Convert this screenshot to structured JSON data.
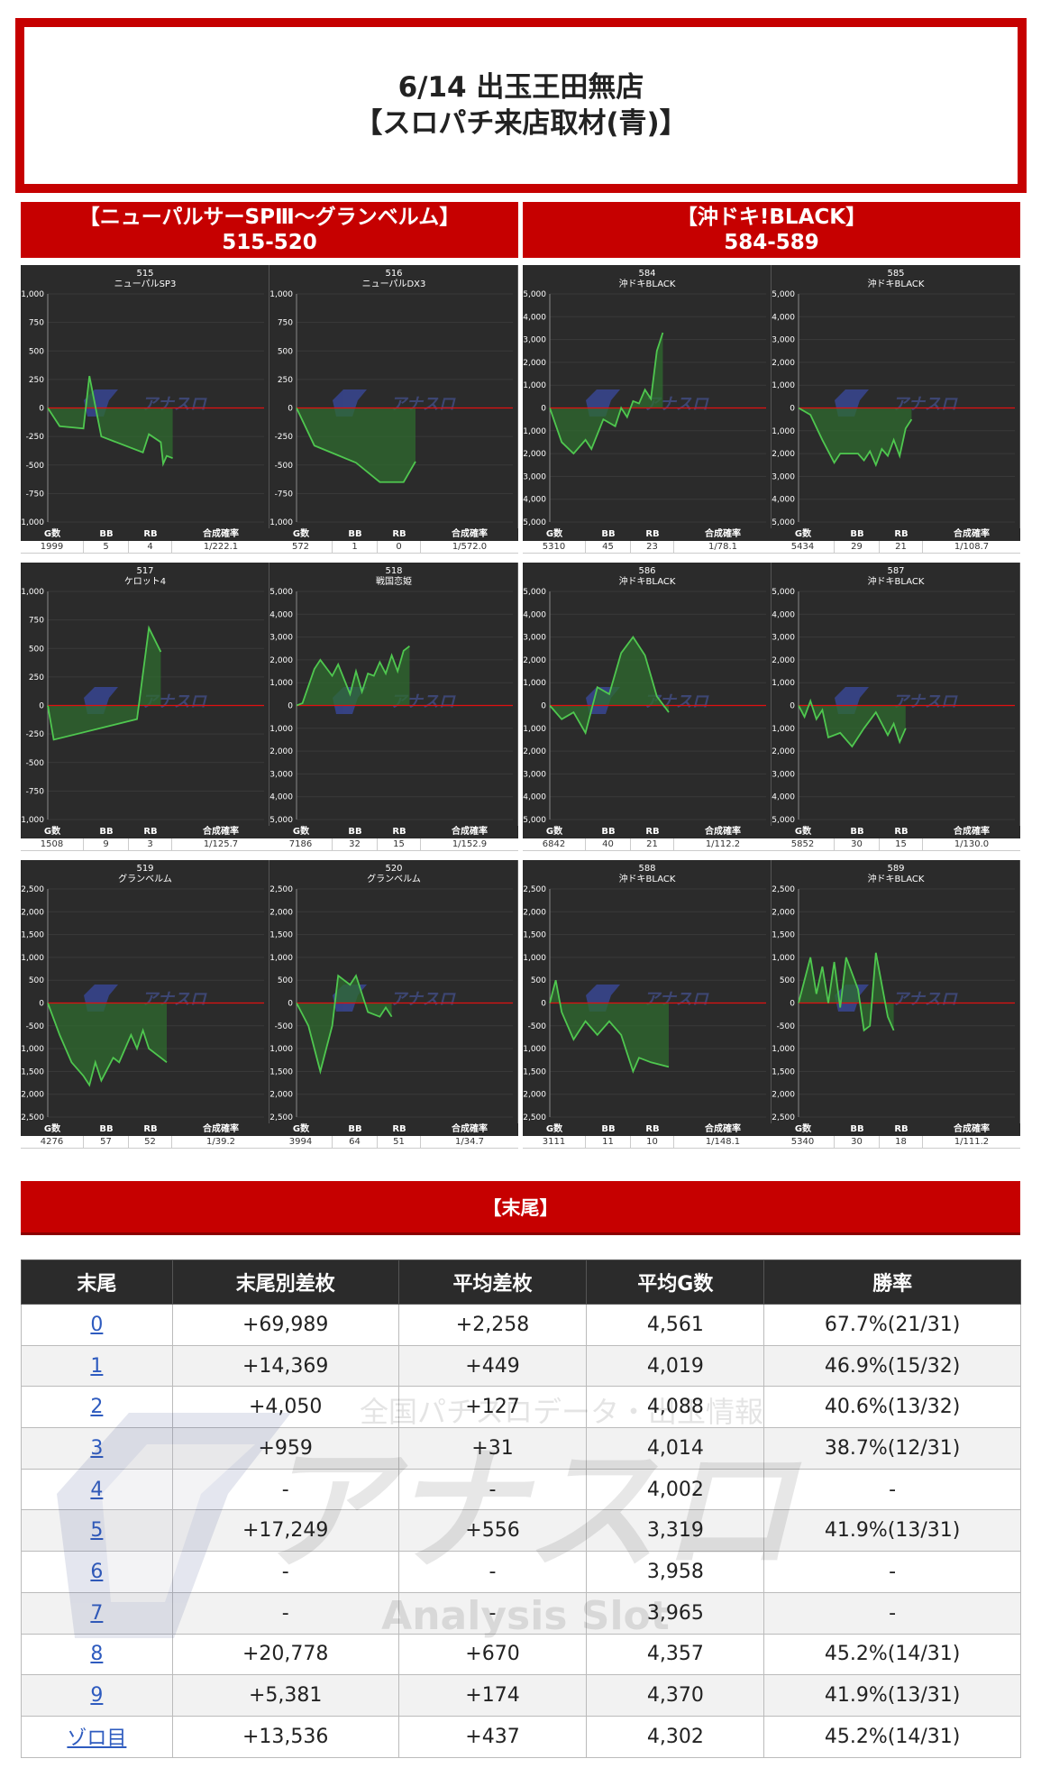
{
  "header": {
    "line1": "6/14 出玉王田無店",
    "line2": "【スロパチ来店取材(青)】"
  },
  "panels": [
    {
      "title": "【ニューパルサーSPⅢ～グランベルム】",
      "range": "515-520",
      "charts": [
        {
          "num": "515",
          "name": "ニューパルSP3",
          "yticks": [
            "1,000",
            "750",
            "500",
            "250",
            "0",
            "-250",
            "-500",
            "-750",
            "-1,000"
          ],
          "ymax": 1000,
          "points": [
            [
              0,
              0
            ],
            [
              0.1,
              -160
            ],
            [
              0.3,
              -180
            ],
            [
              0.35,
              280
            ],
            [
              0.45,
              -250
            ],
            [
              0.8,
              -390
            ],
            [
              0.85,
              -230
            ],
            [
              0.95,
              -300
            ],
            [
              0.97,
              -490
            ],
            [
              1.0,
              -420
            ],
            [
              1.05,
              -440
            ]
          ],
          "g": "1999",
          "bb": "5",
          "rb": "4",
          "rate": "1/222.1"
        },
        {
          "num": "516",
          "name": "ニューパルDX3",
          "yticks": [
            "1,000",
            "750",
            "500",
            "250",
            "0",
            "-250",
            "-500",
            "-750",
            "-1,000"
          ],
          "ymax": 1000,
          "points": [
            [
              0,
              0
            ],
            [
              0.15,
              -330
            ],
            [
              0.5,
              -480
            ],
            [
              0.7,
              -650
            ],
            [
              0.9,
              -650
            ],
            [
              1.0,
              -470
            ]
          ],
          "g": "572",
          "bb": "1",
          "rb": "0",
          "rate": "1/572.0"
        },
        {
          "num": "517",
          "name": "ケロット4",
          "yticks": [
            "1,000",
            "750",
            "500",
            "250",
            "0",
            "-250",
            "-500",
            "-750",
            "-1,000"
          ],
          "ymax": 1000,
          "points": [
            [
              0,
              0
            ],
            [
              0.05,
              -300
            ],
            [
              0.75,
              -120
            ],
            [
              0.85,
              680
            ],
            [
              0.95,
              470
            ]
          ],
          "g": "1508",
          "bb": "9",
          "rb": "3",
          "rate": "1/125.7"
        },
        {
          "num": "518",
          "name": "戦国恋姫",
          "yticks": [
            "5,000",
            "4,000",
            "3,000",
            "2,000",
            "1,000",
            "0",
            "-1,000",
            "-2,000",
            "-3,000",
            "-4,000",
            "-5,000"
          ],
          "ymax": 5000,
          "points": [
            [
              0,
              0
            ],
            [
              0.05,
              100
            ],
            [
              0.15,
              1600
            ],
            [
              0.2,
              2000
            ],
            [
              0.3,
              1300
            ],
            [
              0.35,
              1800
            ],
            [
              0.45,
              500
            ],
            [
              0.5,
              1500
            ],
            [
              0.55,
              600
            ],
            [
              0.6,
              1400
            ],
            [
              0.65,
              1300
            ],
            [
              0.7,
              1900
            ],
            [
              0.75,
              1400
            ],
            [
              0.8,
              2200
            ],
            [
              0.85,
              1500
            ],
            [
              0.9,
              2400
            ],
            [
              0.95,
              2600
            ]
          ],
          "g": "7186",
          "bb": "32",
          "rb": "15",
          "rate": "1/152.9"
        },
        {
          "num": "519",
          "name": "グランベルム",
          "yticks": [
            "2,500",
            "2,000",
            "1,500",
            "1,000",
            "500",
            "0",
            "-500",
            "-1,000",
            "-1,500",
            "-2,000",
            "-2,500"
          ],
          "ymax": 2500,
          "points": [
            [
              0,
              0
            ],
            [
              0.1,
              -700
            ],
            [
              0.2,
              -1300
            ],
            [
              0.3,
              -1600
            ],
            [
              0.35,
              -1800
            ],
            [
              0.4,
              -1300
            ],
            [
              0.45,
              -1700
            ],
            [
              0.55,
              -1200
            ],
            [
              0.6,
              -1300
            ],
            [
              0.7,
              -700
            ],
            [
              0.75,
              -1000
            ],
            [
              0.8,
              -600
            ],
            [
              0.85,
              -1000
            ],
            [
              0.95,
              -1200
            ],
            [
              1.0,
              -1300
            ]
          ],
          "g": "4276",
          "bb": "57",
          "rb": "52",
          "rate": "1/39.2"
        },
        {
          "num": "520",
          "name": "グランベルム",
          "yticks": [
            "2,500",
            "2,000",
            "1,500",
            "1,000",
            "500",
            "0",
            "-500",
            "-1,000",
            "-1,500",
            "-2,000",
            "-2,500"
          ],
          "ymax": 2500,
          "points": [
            [
              0,
              0
            ],
            [
              0.1,
              -500
            ],
            [
              0.2,
              -1500
            ],
            [
              0.3,
              -500
            ],
            [
              0.35,
              600
            ],
            [
              0.45,
              400
            ],
            [
              0.5,
              600
            ],
            [
              0.6,
              -200
            ],
            [
              0.7,
              -300
            ],
            [
              0.75,
              -100
            ],
            [
              0.8,
              -300
            ]
          ],
          "g": "3994",
          "bb": "64",
          "rb": "51",
          "rate": "1/34.7"
        }
      ]
    },
    {
      "title": "【沖ドキ!BLACK】",
      "range": "584-589",
      "charts": [
        {
          "num": "584",
          "name": "沖ドキBLACK",
          "yticks": [
            "5,000",
            "4,000",
            "3,000",
            "2,000",
            "1,000",
            "0",
            "-1,000",
            "-2,000",
            "-3,000",
            "-4,000",
            "-5,000"
          ],
          "ymax": 5000,
          "points": [
            [
              0,
              0
            ],
            [
              0.1,
              -1500
            ],
            [
              0.2,
              -2000
            ],
            [
              0.3,
              -1400
            ],
            [
              0.35,
              -1800
            ],
            [
              0.45,
              -500
            ],
            [
              0.55,
              -800
            ],
            [
              0.6,
              0
            ],
            [
              0.65,
              -400
            ],
            [
              0.7,
              300
            ],
            [
              0.75,
              200
            ],
            [
              0.8,
              800
            ],
            [
              0.85,
              400
            ],
            [
              0.9,
              2500
            ],
            [
              0.95,
              3300
            ]
          ],
          "g": "5310",
          "bb": "45",
          "rb": "23",
          "rate": "1/78.1"
        },
        {
          "num": "585",
          "name": "沖ドキBLACK",
          "yticks": [
            "5,000",
            "4,000",
            "3,000",
            "2,000",
            "1,000",
            "0",
            "-1,000",
            "-2,000",
            "-3,000",
            "-4,000",
            "-5,000"
          ],
          "ymax": 5000,
          "points": [
            [
              0,
              0
            ],
            [
              0.1,
              -300
            ],
            [
              0.2,
              -1400
            ],
            [
              0.3,
              -2400
            ],
            [
              0.35,
              -2000
            ],
            [
              0.5,
              -2000
            ],
            [
              0.55,
              -2300
            ],
            [
              0.6,
              -1900
            ],
            [
              0.65,
              -2500
            ],
            [
              0.7,
              -1800
            ],
            [
              0.75,
              -2100
            ],
            [
              0.8,
              -1400
            ],
            [
              0.85,
              -2100
            ],
            [
              0.9,
              -900
            ],
            [
              0.95,
              -500
            ]
          ],
          "g": "5434",
          "bb": "29",
          "rb": "21",
          "rate": "1/108.7"
        },
        {
          "num": "586",
          "name": "沖ドキBLACK",
          "yticks": [
            "5,000",
            "4,000",
            "3,000",
            "2,000",
            "1,000",
            "0",
            "-1,000",
            "-2,000",
            "-3,000",
            "-4,000",
            "-5,000"
          ],
          "ymax": 5000,
          "points": [
            [
              0,
              0
            ],
            [
              0.1,
              -600
            ],
            [
              0.2,
              -300
            ],
            [
              0.3,
              -1200
            ],
            [
              0.4,
              800
            ],
            [
              0.5,
              500
            ],
            [
              0.6,
              2300
            ],
            [
              0.7,
              3000
            ],
            [
              0.8,
              2200
            ],
            [
              0.9,
              400
            ],
            [
              1.0,
              -300
            ]
          ],
          "g": "6842",
          "bb": "40",
          "rb": "21",
          "rate": "1/112.2"
        },
        {
          "num": "587",
          "name": "沖ドキBLACK",
          "yticks": [
            "5,000",
            "4,000",
            "3,000",
            "2,000",
            "1,000",
            "0",
            "-1,000",
            "-2,000",
            "-3,000",
            "-4,000",
            "-5,000"
          ],
          "ymax": 5000,
          "points": [
            [
              0,
              0
            ],
            [
              0.05,
              -500
            ],
            [
              0.1,
              200
            ],
            [
              0.15,
              -600
            ],
            [
              0.2,
              -200
            ],
            [
              0.25,
              -1400
            ],
            [
              0.35,
              -1200
            ],
            [
              0.45,
              -1800
            ],
            [
              0.55,
              -1000
            ],
            [
              0.65,
              -300
            ],
            [
              0.75,
              -1300
            ],
            [
              0.8,
              -800
            ],
            [
              0.85,
              -1600
            ],
            [
              0.9,
              -1000
            ]
          ],
          "g": "5852",
          "bb": "30",
          "rb": "15",
          "rate": "1/130.0"
        },
        {
          "num": "588",
          "name": "沖ドキBLACK",
          "yticks": [
            "2,500",
            "2,000",
            "1,500",
            "1,000",
            "500",
            "0",
            "-500",
            "-1,000",
            "-1,500",
            "-2,000",
            "-2,500"
          ],
          "ymax": 2500,
          "points": [
            [
              0,
              0
            ],
            [
              0.05,
              500
            ],
            [
              0.1,
              -200
            ],
            [
              0.2,
              -800
            ],
            [
              0.3,
              -400
            ],
            [
              0.4,
              -700
            ],
            [
              0.5,
              -400
            ],
            [
              0.6,
              -700
            ],
            [
              0.7,
              -1500
            ],
            [
              0.75,
              -1200
            ],
            [
              0.85,
              -1300
            ],
            [
              1.0,
              -1400
            ]
          ],
          "g": "3111",
          "bb": "11",
          "rb": "10",
          "rate": "1/148.1"
        },
        {
          "num": "589",
          "name": "沖ドキBLACK",
          "yticks": [
            "2,500",
            "2,000",
            "1,500",
            "1,000",
            "500",
            "0",
            "-500",
            "-1,000",
            "-1,500",
            "-2,000",
            "-2,500"
          ],
          "ymax": 2500,
          "points": [
            [
              0,
              0
            ],
            [
              0.1,
              1000
            ],
            [
              0.15,
              200
            ],
            [
              0.2,
              800
            ],
            [
              0.25,
              0
            ],
            [
              0.3,
              900
            ],
            [
              0.35,
              -100
            ],
            [
              0.4,
              1000
            ],
            [
              0.5,
              300
            ],
            [
              0.55,
              -600
            ],
            [
              0.6,
              -500
            ],
            [
              0.65,
              1100
            ],
            [
              0.75,
              -300
            ],
            [
              0.8,
              -600
            ]
          ],
          "g": "5340",
          "bb": "30",
          "rb": "18",
          "rate": "1/111.2"
        }
      ]
    }
  ],
  "stat_labels": {
    "g": "G数",
    "bb": "BB",
    "rb": "RB",
    "rate": "合成確率"
  },
  "watermark": {
    "top_text": "全国パチスロデータ・出玉情報",
    "brand": "アナスロ",
    "sub": "Analysis Slot"
  },
  "section": {
    "title": "【末尾】"
  },
  "table": {
    "headers": [
      "末尾",
      "末尾別差枚",
      "平均差枚",
      "平均G数",
      "勝率"
    ],
    "rows": [
      {
        "tail": "0",
        "diff": "+69,989",
        "avg": "+2,258",
        "games": "4,561",
        "win": "67.7%(21/31)"
      },
      {
        "tail": "1",
        "diff": "+14,369",
        "avg": "+449",
        "games": "4,019",
        "win": "46.9%(15/32)"
      },
      {
        "tail": "2",
        "diff": "+4,050",
        "avg": "+127",
        "games": "4,088",
        "win": "40.6%(13/32)"
      },
      {
        "tail": "3",
        "diff": "+959",
        "avg": "+31",
        "games": "4,014",
        "win": "38.7%(12/31)"
      },
      {
        "tail": "4",
        "diff": "-",
        "avg": "-",
        "games": "4,002",
        "win": "-"
      },
      {
        "tail": "5",
        "diff": "+17,249",
        "avg": "+556",
        "games": "3,319",
        "win": "41.9%(13/31)"
      },
      {
        "tail": "6",
        "diff": "-",
        "avg": "-",
        "games": "3,958",
        "win": "-"
      },
      {
        "tail": "7",
        "diff": "-",
        "avg": "-",
        "games": "3,965",
        "win": "-"
      },
      {
        "tail": "8",
        "diff": "+20,778",
        "avg": "+670",
        "games": "4,357",
        "win": "45.2%(14/31)"
      },
      {
        "tail": "9",
        "diff": "+5,381",
        "avg": "+174",
        "games": "4,370",
        "win": "41.9%(13/31)"
      },
      {
        "tail": "ゾロ目",
        "diff": "+13,536",
        "avg": "+437",
        "games": "4,302",
        "win": "45.2%(14/31)"
      }
    ]
  },
  "colors": {
    "accent": "#c60000",
    "chart_bg": "#2b2b2b",
    "line": "#4fc74f",
    "fill": "#2f6b2f",
    "zero": "#e01010",
    "link": "#2e5bbf"
  }
}
